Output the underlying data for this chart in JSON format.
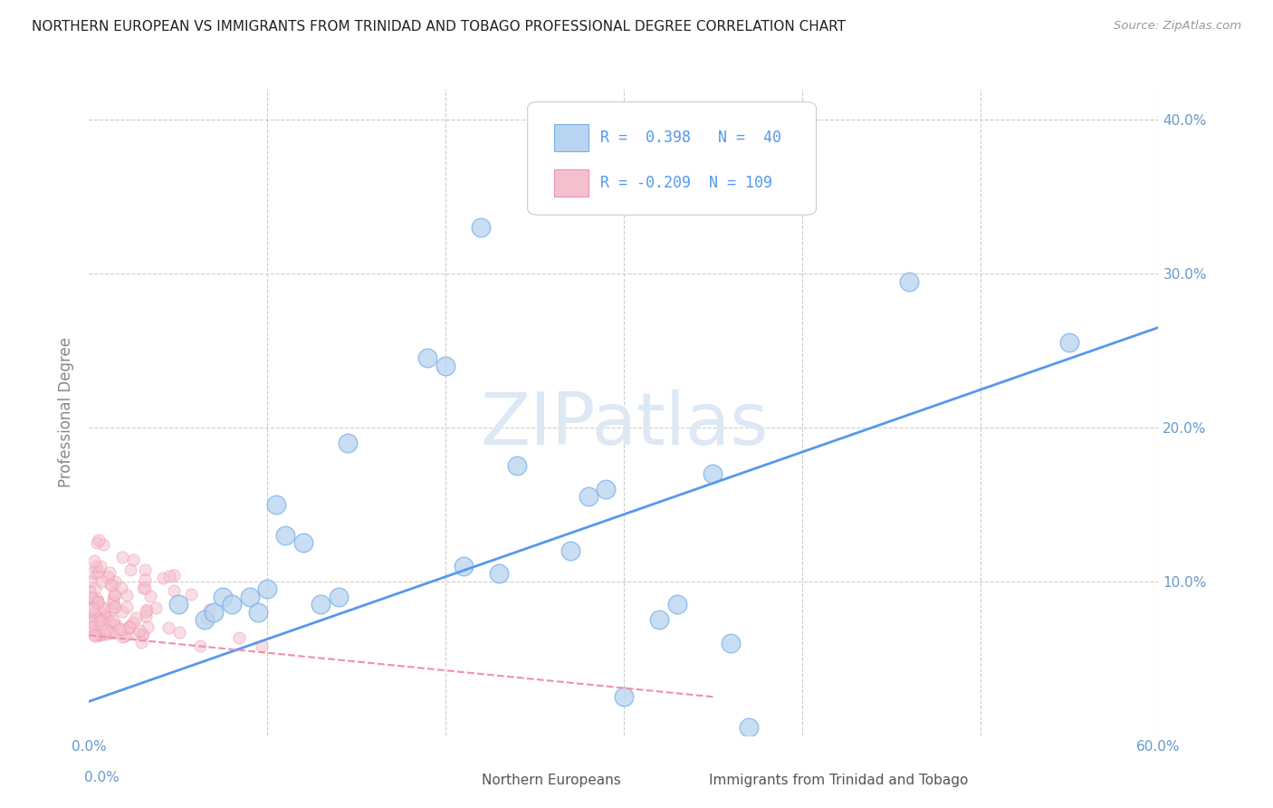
{
  "title": "NORTHERN EUROPEAN VS IMMIGRANTS FROM TRINIDAD AND TOBAGO PROFESSIONAL DEGREE CORRELATION CHART",
  "source": "Source: ZipAtlas.com",
  "ylabel": "Professional Degree",
  "xlim": [
    0.0,
    0.6
  ],
  "ylim": [
    0.0,
    0.42
  ],
  "blue_R": 0.398,
  "blue_N": 40,
  "pink_R": -0.209,
  "pink_N": 109,
  "blue_color": "#b8d4f0",
  "pink_color": "#f5c0ce",
  "blue_edge_color": "#7ab0e8",
  "pink_edge_color": "#f090aa",
  "blue_line_color": "#5599ee",
  "pink_line_color": "#f090aa",
  "grid_color": "#cccccc",
  "background_color": "#ffffff",
  "title_color": "#222222",
  "axis_tick_color": "#6699cc",
  "watermark_color": "#dde8f5",
  "blue_scatter_x": [
    0.05,
    0.065,
    0.07,
    0.075,
    0.08,
    0.09,
    0.095,
    0.1,
    0.105,
    0.11,
    0.12,
    0.13,
    0.14,
    0.145,
    0.19,
    0.2,
    0.21,
    0.22,
    0.23,
    0.24,
    0.27,
    0.28,
    0.29,
    0.3,
    0.32,
    0.33,
    0.35,
    0.36,
    0.37,
    0.46,
    0.55
  ],
  "blue_scatter_y": [
    0.085,
    0.075,
    0.08,
    0.09,
    0.085,
    0.09,
    0.08,
    0.095,
    0.15,
    0.13,
    0.125,
    0.085,
    0.09,
    0.19,
    0.245,
    0.24,
    0.11,
    0.33,
    0.105,
    0.175,
    0.12,
    0.155,
    0.16,
    0.025,
    0.075,
    0.085,
    0.17,
    0.06,
    0.005,
    0.295,
    0.255
  ],
  "blue_line_x0": 0.0,
  "blue_line_y0": 0.022,
  "blue_line_x1": 0.6,
  "blue_line_y1": 0.265,
  "pink_line_x0": 0.0,
  "pink_line_y0": 0.065,
  "pink_line_x1": 0.35,
  "pink_line_y1": 0.025
}
